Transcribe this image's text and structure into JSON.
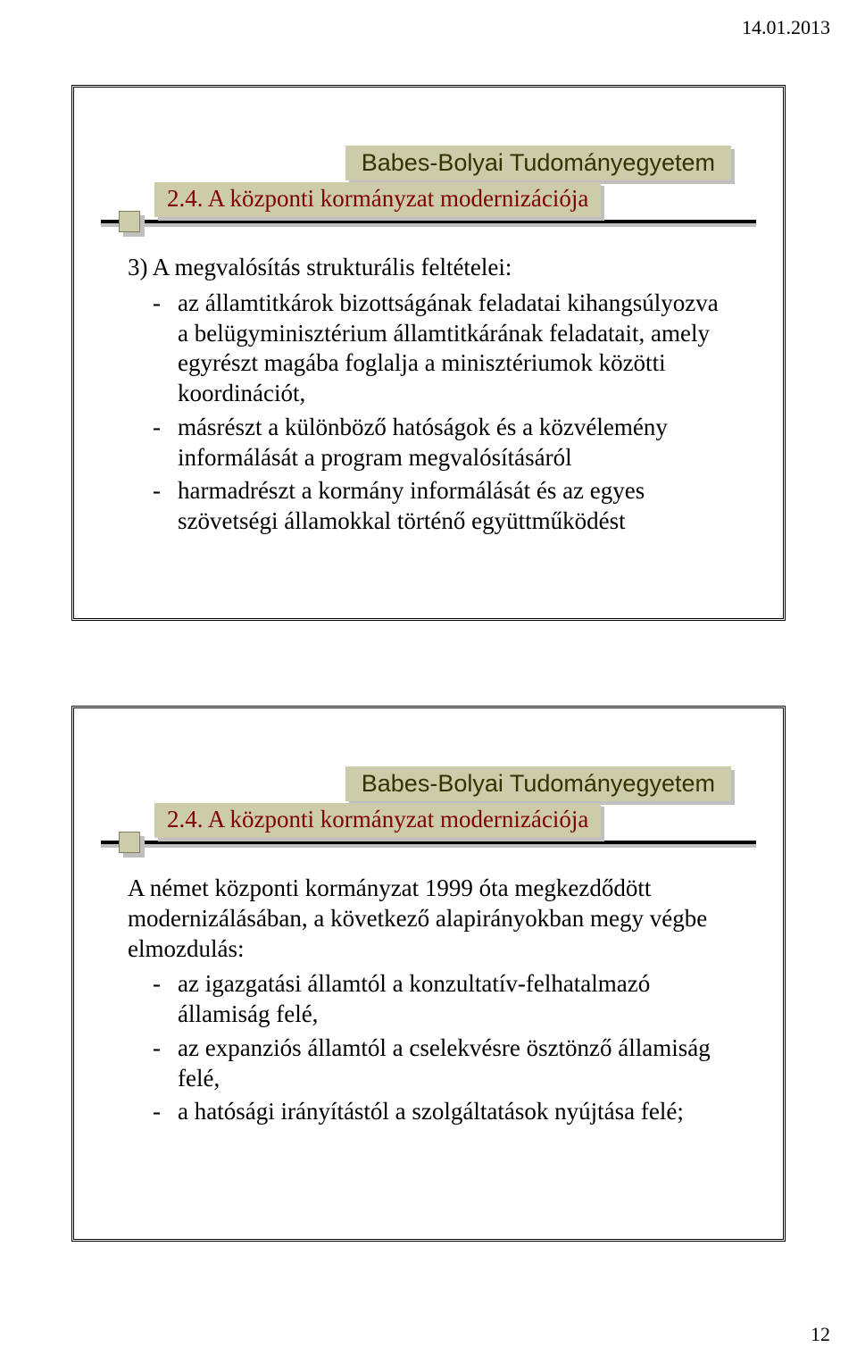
{
  "header_date": "14.01.2013",
  "page_number": "12",
  "university": "Babes-Bolyai Tudományegyetem",
  "section_title": "2.4. A központi kormányzat modernizációja",
  "colors": {
    "band_bg": "#ccccaa",
    "band_text": "#333300",
    "section_text": "#800000",
    "rule": "#000000",
    "shadow": "#bfbfbf",
    "page_bg": "#ffffff"
  },
  "slide1": {
    "lead": "3) A megvalósítás strukturális feltételei:",
    "items": [
      "az államtitkárok bizottságának feladatai kihangsúlyozva a belügyminisztérium államtitkárának feladatait, amely egyrészt magába foglalja a minisztériumok közötti koordinációt,",
      "másrészt a különböző hatóságok és a közvélemény informálását a program megvalósításáról",
      "harmadrészt a kormány informálását és az egyes szövetségi államokkal történő együttműködést"
    ]
  },
  "slide2": {
    "lead": "A német központi kormányzat 1999 óta megkezdődött modernizálásában, a következő alapirányokban megy végbe elmozdulás:",
    "items": [
      "az igazgatási államtól a konzultatív-felhatalmazó államiság felé,",
      "az expanziós államtól a cselekvésre ösztönző államiság felé,",
      "a hatósági irányítástól a szolgáltatások nyújtása felé;"
    ]
  }
}
